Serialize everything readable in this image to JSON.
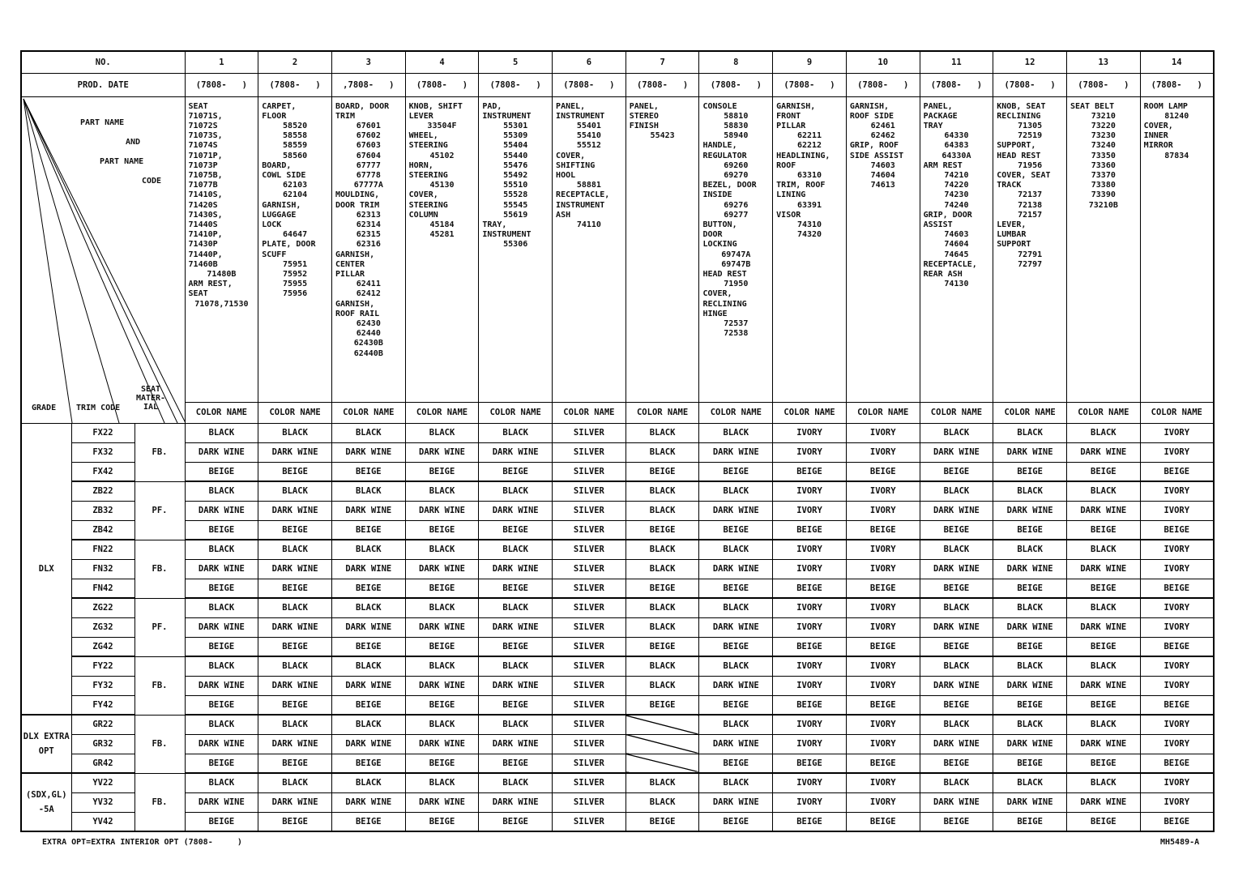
{
  "header": {
    "no_label": "NO.",
    "prod_date_label": "PROD. DATE",
    "part_label": [
      "PART NAME",
      "AND",
      "PART NAME",
      "CODE"
    ],
    "grade_label": "GRADE",
    "trim_label": "TRIM CODE",
    "seat_label": "SEAT MATER- IAL"
  },
  "columns": [
    {
      "no": "1",
      "date": "(7808-   )",
      "color_header": "COLOR NAME",
      "parts": [
        "SEAT",
        "71071S, 71072S",
        "71073S, 71074S",
        "71071P, 71073P",
        "71075B, 71077B",
        "71410S, 71420S",
        "71430S, 71440S",
        "71410P, 71430P",
        "71440P, 71460B",
        "71480B",
        "ARM REST,",
        "SEAT",
        "71078,71530"
      ]
    },
    {
      "no": "2",
      "date": "(7808-   )",
      "color_header": "COLOR NAME",
      "parts": [
        "CARPET,",
        "FLOOR",
        "58520",
        "58558",
        "58559",
        "58560",
        "BOARD,",
        "COWL SIDE",
        "62103",
        "62104",
        "GARNISH,",
        "LUGGAGE",
        "LOCK",
        "64647",
        "PLATE, DOOR",
        "SCUFF",
        "75951",
        "75952",
        "75955",
        "75956"
      ]
    },
    {
      "no": "3",
      "date": ",7808-   )",
      "color_header": "COLOR NAME",
      "parts": [
        "BOARD, DOOR",
        "TRIM",
        "67601",
        "67602",
        "67603",
        "67604",
        "67777",
        "67778",
        "67777A",
        "MOULDING,",
        "DOOR TRIM",
        "62313",
        "62314",
        "62315",
        "62316",
        "GARNISH,",
        "CENTER",
        "PILLAR",
        "62411",
        "62412",
        "GARNISH,",
        "ROOF RAIL",
        "62430",
        "62440",
        "62430B",
        "62440B"
      ]
    },
    {
      "no": "4",
      "date": "(7808-   )",
      "color_header": "COLOR NAME",
      "parts": [
        "KNOB, SHIFT",
        "LEVER",
        "33504F",
        "WHEEL,",
        "STEERING",
        "45102",
        "HORN,",
        "STEERING",
        "45130",
        "COVER,",
        "STEERING",
        "COLUMN",
        "45184",
        "45281"
      ]
    },
    {
      "no": "5",
      "date": "(7808-   )",
      "color_header": "COLOR NAME",
      "parts": [
        "PAD,",
        "INSTRUMENT",
        "55301",
        "55309",
        "55404",
        "55440",
        "55476",
        "55492",
        "55510",
        "55528",
        "55545",
        "55619",
        "TRAY,",
        "INSTRUMENT",
        "55306"
      ]
    },
    {
      "no": "6",
      "date": "(7808-   )",
      "color_header": "COLOR NAME",
      "parts": [
        "PANEL,",
        "INSTRUMENT",
        "55401",
        "55410",
        "55512",
        "COVER,",
        "SHIFTING",
        "HOOL",
        "58881",
        "RECEPTACLE,",
        "INSTRUMENT",
        "ASH",
        "74110"
      ]
    },
    {
      "no": "7",
      "date": "(7808-   )",
      "color_header": "COLOR NAME",
      "parts": [
        "PANEL,",
        "STEREO",
        "FINISH",
        "55423"
      ]
    },
    {
      "no": "8",
      "date": "(7808-   )",
      "color_header": "COLOR NAME",
      "parts": [
        "CONSOLE",
        "58810",
        "58830",
        "58940",
        "HANDLE,",
        "REGULATOR",
        "69260",
        "69270",
        "BEZEL, DOOR",
        "INSIDE",
        "69276",
        "69277",
        "BUTTON,",
        "DOOR",
        "LOCKING",
        "69747A",
        "69747B",
        "HEAD REST",
        "71950",
        "COVER,",
        "RECLINING",
        "HINGE",
        "72537",
        "72538"
      ]
    },
    {
      "no": "9",
      "date": "(7808-   )",
      "color_header": "COLOR NAME",
      "parts": [
        "GARNISH,",
        "FRONT",
        "PILLAR",
        "62211",
        "62212",
        "HEADLINING,",
        "ROOF",
        "63310",
        "TRIM, ROOF",
        "LINING",
        "63391",
        "VISOR",
        "74310",
        "74320"
      ]
    },
    {
      "no": "10",
      "date": "(7808-   )",
      "color_header": "COLOR NAME",
      "parts": [
        "GARNISH,",
        "ROOF SIDE",
        "62461",
        "62462",
        "GRIP, ROOF",
        "SIDE ASSIST",
        "74603",
        "74604",
        "74613"
      ]
    },
    {
      "no": "11",
      "date": "(7808-   )",
      "color_header": "COLOR NAME",
      "parts": [
        "PANEL,",
        "PACKAGE",
        "TRAY",
        "64330",
        "64383",
        "64330A",
        "ARM REST",
        "74210",
        "74220",
        "74230",
        "74240",
        "GRIP, DOOR",
        "ASSIST",
        "74603",
        "74604",
        "74645",
        "RECEPTACLE,",
        "REAR ASH",
        "74130"
      ]
    },
    {
      "no": "12",
      "date": "(7808-   )",
      "color_header": "COLOR NAME",
      "parts": [
        "KNOB, SEAT",
        "RECLINING",
        "71305",
        "72519",
        "SUPPORT,",
        "HEAD REST",
        "71956",
        "COVER, SEAT",
        "TRACK",
        "72137",
        "72138",
        "72157",
        "LEVER,",
        "LUMBAR",
        "SUPPORT",
        "72791",
        "72797"
      ]
    },
    {
      "no": "13",
      "date": "(7808-   )",
      "color_header": "COLOR NAME",
      "parts": [
        "SEAT BELT",
        "73210",
        "73220",
        "73230",
        "73240",
        "73350",
        "73360",
        "73370",
        "73380",
        "73390",
        "73210B"
      ]
    },
    {
      "no": "14",
      "date": "(7808-   )",
      "color_header": "COLOR NAME",
      "parts": [
        "ROOM LAMP",
        "81240",
        "COVER,",
        "INNER",
        "MIRROR",
        "87834"
      ]
    }
  ],
  "grades": [
    {
      "label": "DLX",
      "seat_groups": [
        {
          "material": "FB.",
          "rows": [
            {
              "trim": "FX22",
              "colors": [
                "BLACK",
                "BLACK",
                "BLACK",
                "BLACK",
                "BLACK",
                "SILVER",
                "BLACK",
                "BLACK",
                "IVORY",
                "IVORY",
                "BLACK",
                "BLACK",
                "BLACK",
                "IVORY"
              ]
            },
            {
              "trim": "FX32",
              "colors": [
                "DARK WINE",
                "DARK WINE",
                "DARK WINE",
                "DARK WINE",
                "DARK WINE",
                "SILVER",
                "BLACK",
                "DARK WINE",
                "IVORY",
                "IVORY",
                "DARK WINE",
                "DARK WINE",
                "DARK WINE",
                "IVORY"
              ]
            },
            {
              "trim": "FX42",
              "colors": [
                "BEIGE",
                "BEIGE",
                "BEIGE",
                "BEIGE",
                "BEIGE",
                "SILVER",
                "BEIGE",
                "BEIGE",
                "BEIGE",
                "BEIGE",
                "BEIGE",
                "BEIGE",
                "BEIGE",
                "BEIGE"
              ]
            }
          ]
        },
        {
          "material": "PF.",
          "rows": [
            {
              "trim": "ZB22",
              "colors": [
                "BLACK",
                "BLACK",
                "BLACK",
                "BLACK",
                "BLACK",
                "SILVER",
                "BLACK",
                "BLACK",
                "IVORY",
                "IVORY",
                "BLACK",
                "BLACK",
                "BLACK",
                "IVORY"
              ]
            },
            {
              "trim": "ZB32",
              "colors": [
                "DARK WINE",
                "DARK WINE",
                "DARK WINE",
                "DARK WINE",
                "DARK WINE",
                "SILVER",
                "BLACK",
                "DARK WINE",
                "IVORY",
                "IVORY",
                "DARK WINE",
                "DARK WINE",
                "DARK WINE",
                "IVORY"
              ]
            },
            {
              "trim": "ZB42",
              "colors": [
                "BEIGE",
                "BEIGE",
                "BEIGE",
                "BEIGE",
                "BEIGE",
                "SILVER",
                "BEIGE",
                "BEIGE",
                "BEIGE",
                "BEIGE",
                "BEIGE",
                "BEIGE",
                "BEIGE",
                "BEIGE"
              ]
            }
          ]
        },
        {
          "material": "FB.",
          "rows": [
            {
              "trim": "FN22",
              "colors": [
                "BLACK",
                "BLACK",
                "BLACK",
                "BLACK",
                "BLACK",
                "SILVER",
                "BLACK",
                "BLACK",
                "IVORY",
                "IVORY",
                "BLACK",
                "BLACK",
                "BLACK",
                "IVORY"
              ]
            },
            {
              "trim": "FN32",
              "colors": [
                "DARK WINE",
                "DARK WINE",
                "DARK WINE",
                "DARK WINE",
                "DARK WINE",
                "SILVER",
                "BLACK",
                "DARK WINE",
                "IVORY",
                "IVORY",
                "DARK WINE",
                "DARK WINE",
                "DARK WINE",
                "IVORY"
              ]
            },
            {
              "trim": "FN42",
              "colors": [
                "BEIGE",
                "BEIGE",
                "BEIGE",
                "BEIGE",
                "BEIGE",
                "SILVER",
                "BEIGE",
                "BEIGE",
                "BEIGE",
                "BEIGE",
                "BEIGE",
                "BEIGE",
                "BEIGE",
                "BEIGE"
              ]
            }
          ]
        },
        {
          "material": "PF.",
          "rows": [
            {
              "trim": "ZG22",
              "colors": [
                "BLACK",
                "BLACK",
                "BLACK",
                "BLACK",
                "BLACK",
                "SILVER",
                "BLACK",
                "BLACK",
                "IVORY",
                "IVORY",
                "BLACK",
                "BLACK",
                "BLACK",
                "IVORY"
              ]
            },
            {
              "trim": "ZG32",
              "colors": [
                "DARK WINE",
                "DARK WINE",
                "DARK WINE",
                "DARK WINE",
                "DARK WINE",
                "SILVER",
                "BLACK",
                "DARK WINE",
                "IVORY",
                "IVORY",
                "DARK WINE",
                "DARK WINE",
                "DARK WINE",
                "IVORY"
              ]
            },
            {
              "trim": "ZG42",
              "colors": [
                "BEIGE",
                "BEIGE",
                "BEIGE",
                "BEIGE",
                "BEIGE",
                "SILVER",
                "BEIGE",
                "BEIGE",
                "BEIGE",
                "BEIGE",
                "BEIGE",
                "BEIGE",
                "BEIGE",
                "BEIGE"
              ]
            }
          ]
        },
        {
          "material": "FB.",
          "rows": [
            {
              "trim": "FY22",
              "colors": [
                "BLACK",
                "BLACK",
                "BLACK",
                "BLACK",
                "BLACK",
                "SILVER",
                "BLACK",
                "BLACK",
                "IVORY",
                "IVORY",
                "BLACK",
                "BLACK",
                "BLACK",
                "IVORY"
              ]
            },
            {
              "trim": "FY32",
              "colors": [
                "DARK WINE",
                "DARK WINE",
                "DARK WINE",
                "DARK WINE",
                "DARK WINE",
                "SILVER",
                "BLACK",
                "DARK WINE",
                "IVORY",
                "IVORY",
                "DARK WINE",
                "DARK WINE",
                "DARK WINE",
                "IVORY"
              ]
            },
            {
              "trim": "FY42",
              "colors": [
                "BEIGE",
                "BEIGE",
                "BEIGE",
                "BEIGE",
                "BEIGE",
                "SILVER",
                "BEIGE",
                "BEIGE",
                "BEIGE",
                "BEIGE",
                "BEIGE",
                "BEIGE",
                "BEIGE",
                "BEIGE"
              ]
            }
          ]
        }
      ]
    },
    {
      "label": "DLX EXTRA OPT",
      "seat_groups": [
        {
          "material": "FB.",
          "rows": [
            {
              "trim": "GR22",
              "colors": [
                "BLACK",
                "BLACK",
                "BLACK",
                "BLACK",
                "BLACK",
                "SILVER",
                null,
                "BLACK",
                "IVORY",
                "IVORY",
                "BLACK",
                "BLACK",
                "BLACK",
                "IVORY"
              ]
            },
            {
              "trim": "GR32",
              "colors": [
                "DARK WINE",
                "DARK WINE",
                "DARK WINE",
                "DARK WINE",
                "DARK WINE",
                "SILVER",
                null,
                "DARK WINE",
                "IVORY",
                "IVORY",
                "DARK WINE",
                "DARK WINE",
                "DARK WINE",
                "IVORY"
              ]
            },
            {
              "trim": "GR42",
              "colors": [
                "BEIGE",
                "BEIGE",
                "BEIGE",
                "BEIGE",
                "BEIGE",
                "SILVER",
                null,
                "BEIGE",
                "BEIGE",
                "BEIGE",
                "BEIGE",
                "BEIGE",
                "BEIGE",
                "BEIGE"
              ]
            }
          ]
        }
      ]
    },
    {
      "label": "(SDX,GL) -5A",
      "seat_groups": [
        {
          "material": "FB.",
          "rows": [
            {
              "trim": "YV22",
              "colors": [
                "BLACK",
                "BLACK",
                "BLACK",
                "BLACK",
                "BLACK",
                "SILVER",
                "BLACK",
                "BLACK",
                "IVORY",
                "IVORY",
                "BLACK",
                "BLACK",
                "BLACK",
                "IVORY"
              ]
            },
            {
              "trim": "YV32",
              "colors": [
                "DARK WINE",
                "DARK WINE",
                "DARK WINE",
                "DARK WINE",
                "DARK WINE",
                "SILVER",
                "BLACK",
                "DARK WINE",
                "IVORY",
                "IVORY",
                "DARK WINE",
                "DARK WINE",
                "DARK WINE",
                "IVORY"
              ]
            },
            {
              "trim": "YV42",
              "colors": [
                "BEIGE",
                "BEIGE",
                "BEIGE",
                "BEIGE",
                "BEIGE",
                "SILVER",
                "BEIGE",
                "BEIGE",
                "BEIGE",
                "BEIGE",
                "BEIGE",
                "BEIGE",
                "BEIGE",
                "BEIGE"
              ]
            }
          ]
        }
      ]
    }
  ],
  "footer": {
    "note": "EXTRA OPT=EXTRA INTERIOR OPT (7808-     )",
    "code": "MH5489-A"
  }
}
